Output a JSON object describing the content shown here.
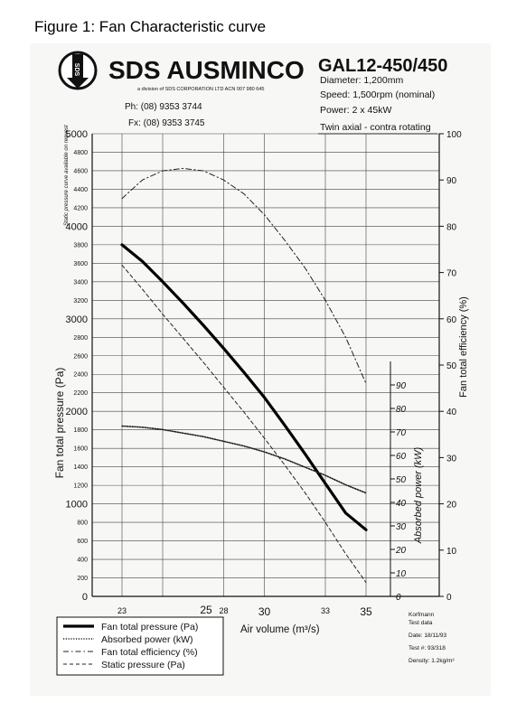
{
  "figure_title": "Figure 1: Fan Characteristic curve",
  "header": {
    "logo_mark": "SDS",
    "company": "SDS AUSMINCO",
    "division": "a division of SDS CORPORATION LTD ACN 007 980 645",
    "phone": "Ph: (08) 9353 3744",
    "fax": "Fx: (08) 9353 3745",
    "model": "GAL12-450/450",
    "specs": [
      "Diameter: 1,200mm",
      "Speed: 1,500rpm (nominal)",
      "Power: 2 x 45kW",
      "Twin axial - contra rotating"
    ]
  },
  "side_note": "Static pressure curve available on request",
  "test_info": {
    "name": "Korfmann",
    "lines": [
      "Test data",
      "Date: 18/11/93",
      "Test #: 93/318",
      "Density: 1.2kg/m³"
    ]
  },
  "chart_data": {
    "type": "line",
    "xlabel": "Air volume (m³/s)",
    "ylabel": "Fan total pressure (Pa)",
    "y2label": "Fan total efficiency (%)",
    "y3label": "Absorbed power (kW)",
    "xlim": [
      23,
      35
    ],
    "ylim": [
      0,
      5000
    ],
    "y2lim": [
      0,
      100
    ],
    "y3lim": [
      0,
      100
    ],
    "x_ticks": [
      {
        "value": 23,
        "label": "23"
      },
      {
        "value": 25,
        "label": "25"
      },
      {
        "value": 28,
        "label": "28"
      },
      {
        "value": 30,
        "label": "30"
      },
      {
        "value": 33,
        "label": "33"
      },
      {
        "value": 35,
        "label": "35"
      }
    ],
    "y_ticks_major": [
      0,
      1000,
      2000,
      3000,
      4000,
      5000
    ],
    "y_ticks_minor": [
      200,
      400,
      600,
      800,
      1200,
      1400,
      1600,
      1800,
      2200,
      2400,
      2600,
      2800,
      3200,
      3400,
      3600,
      3800,
      4200,
      4400,
      4600,
      4800
    ],
    "y2_ticks": [
      0,
      10,
      20,
      30,
      40,
      50,
      60,
      70,
      80,
      90,
      100
    ],
    "y3_ticks": [
      0,
      10,
      20,
      30,
      40,
      50,
      60,
      70,
      80,
      90
    ],
    "grid": true,
    "legend_position": "bottom-left",
    "series": [
      {
        "name": "Fan total pressure (Pa)",
        "axis": "pressure",
        "style": "solid-thick",
        "x": [
          23,
          24,
          25,
          26,
          27,
          28,
          29,
          30,
          31,
          32,
          33,
          34,
          35
        ],
        "y": [
          3800,
          3620,
          3400,
          3170,
          2930,
          2680,
          2420,
          2150,
          1850,
          1540,
          1220,
          900,
          720
        ]
      },
      {
        "name": "Absorbed power (kW)",
        "axis": "power",
        "style": "dotted",
        "x": [
          23,
          24,
          25,
          26,
          27,
          28,
          29,
          30,
          31,
          32,
          33,
          34,
          35
        ],
        "y": [
          72.5,
          72,
          71,
          69.5,
          68,
          66,
          64,
          61.5,
          58.5,
          55,
          51.5,
          47.5,
          44
        ]
      },
      {
        "name": "Fan total efficiency (%)",
        "axis": "efficiency",
        "style": "dash-dot",
        "x": [
          23,
          24,
          25,
          26,
          27,
          28,
          29,
          30,
          31,
          32,
          33,
          34,
          35
        ],
        "y": [
          86,
          90,
          92,
          92.5,
          92,
          90,
          87,
          82.5,
          77,
          71,
          64,
          56,
          46
        ]
      },
      {
        "name": "Static pressure (Pa)",
        "axis": "pressure",
        "style": "dashed",
        "x": [
          23,
          24,
          25,
          26,
          27,
          28,
          29,
          30,
          31,
          32,
          33,
          34,
          35
        ],
        "y": [
          3580,
          3320,
          3050,
          2790,
          2530,
          2260,
          1990,
          1710,
          1420,
          1120,
          800,
          460,
          150
        ]
      }
    ]
  }
}
